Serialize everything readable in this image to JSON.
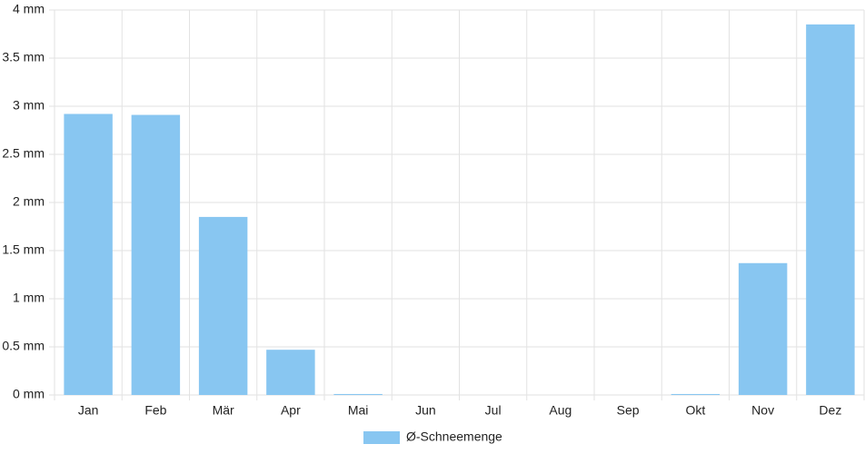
{
  "chart_data": {
    "type": "bar",
    "categories": [
      "Jan",
      "Feb",
      "Mär",
      "Apr",
      "Mai",
      "Jun",
      "Jul",
      "Aug",
      "Sep",
      "Okt",
      "Nov",
      "Dez"
    ],
    "series": [
      {
        "name": "Ø-Schneemenge",
        "color": "#88c6f1",
        "values": [
          2.92,
          2.91,
          1.85,
          0.47,
          0.01,
          0,
          0,
          0,
          0,
          0.01,
          1.37,
          3.85
        ]
      }
    ],
    "ylim": [
      0,
      4
    ],
    "yticks": [
      {
        "value": 0,
        "label": "0 mm"
      },
      {
        "value": 0.5,
        "label": "0.5 mm"
      },
      {
        "value": 1,
        "label": "1 mm"
      },
      {
        "value": 1.5,
        "label": "1.5 mm"
      },
      {
        "value": 2,
        "label": "2 mm"
      },
      {
        "value": 2.5,
        "label": "2.5 mm"
      },
      {
        "value": 3,
        "label": "3 mm"
      },
      {
        "value": 3.5,
        "label": "3.5 mm"
      },
      {
        "value": 4,
        "label": "4 mm"
      }
    ],
    "grid": true,
    "legend": "bottom"
  }
}
